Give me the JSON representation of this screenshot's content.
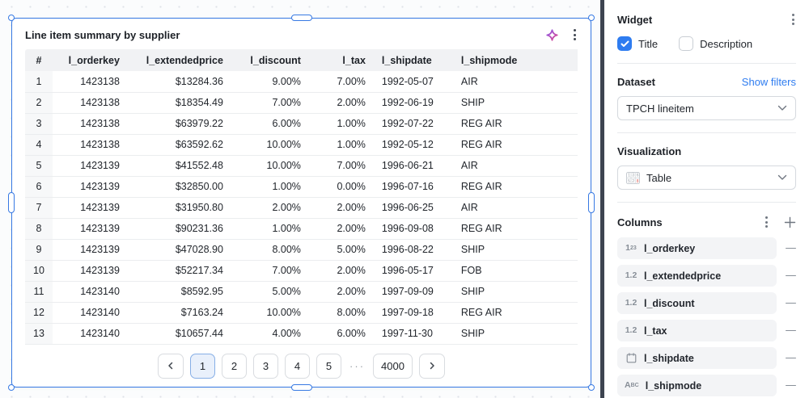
{
  "colors": {
    "selection_blue": "#3779e3",
    "accent_blue": "#2e7cf0",
    "link_blue": "#2e7cf0",
    "sparkle_purple": "#7b5bfa",
    "sparkle_pink": "#f0447c",
    "divider_dark": "#3d4450"
  },
  "widget": {
    "title": "Line item summary by supplier",
    "table": {
      "headers": [
        "#",
        "l_orderkey",
        "l_extendedprice",
        "l_discount",
        "l_tax",
        "l_shipdate",
        "l_shipmode"
      ],
      "rows": [
        [
          "1",
          "1423138",
          "$13284.36",
          "9.00%",
          "7.00%",
          "1992-05-07",
          "AIR"
        ],
        [
          "2",
          "1423138",
          "$18354.49",
          "7.00%",
          "2.00%",
          "1992-06-19",
          "SHIP"
        ],
        [
          "3",
          "1423138",
          "$63979.22",
          "6.00%",
          "1.00%",
          "1992-07-22",
          "REG AIR"
        ],
        [
          "4",
          "1423138",
          "$63592.62",
          "10.00%",
          "1.00%",
          "1992-05-12",
          "REG AIR"
        ],
        [
          "5",
          "1423139",
          "$41552.48",
          "10.00%",
          "7.00%",
          "1996-06-21",
          "AIR"
        ],
        [
          "6",
          "1423139",
          "$32850.00",
          "1.00%",
          "0.00%",
          "1996-07-16",
          "REG AIR"
        ],
        [
          "7",
          "1423139",
          "$31950.80",
          "2.00%",
          "2.00%",
          "1996-06-25",
          "AIR"
        ],
        [
          "8",
          "1423139",
          "$90231.36",
          "1.00%",
          "2.00%",
          "1996-09-08",
          "REG AIR"
        ],
        [
          "9",
          "1423139",
          "$47028.90",
          "8.00%",
          "5.00%",
          "1996-08-22",
          "SHIP"
        ],
        [
          "10",
          "1423139",
          "$52217.34",
          "7.00%",
          "2.00%",
          "1996-05-17",
          "FOB"
        ],
        [
          "11",
          "1423140",
          "$8592.95",
          "5.00%",
          "2.00%",
          "1997-09-09",
          "SHIP"
        ],
        [
          "12",
          "1423140",
          "$7163.24",
          "10.00%",
          "8.00%",
          "1997-09-18",
          "REG AIR"
        ],
        [
          "13",
          "1423140",
          "$10657.44",
          "4.00%",
          "6.00%",
          "1997-11-30",
          "SHIP"
        ]
      ]
    },
    "pagination": {
      "pages": [
        "1",
        "2",
        "3",
        "4",
        "5"
      ],
      "active_page": "1",
      "ellipsis": "···",
      "last_page": "4000"
    }
  },
  "panel": {
    "widget_section": {
      "title": "Widget",
      "checkboxes": [
        {
          "label": "Title",
          "checked": true
        },
        {
          "label": "Description",
          "checked": false
        }
      ]
    },
    "dataset_section": {
      "title": "Dataset",
      "link_label": "Show filters",
      "selected_value": "TPCH lineitem"
    },
    "visualization_section": {
      "title": "Visualization",
      "selected_value": "Table"
    },
    "columns_section": {
      "title": "Columns",
      "items": [
        {
          "type": "integer",
          "label": "l_orderkey"
        },
        {
          "type": "decimal",
          "label": "l_extendedprice"
        },
        {
          "type": "decimal",
          "label": "l_discount"
        },
        {
          "type": "decimal",
          "label": "l_tax"
        },
        {
          "type": "date",
          "label": "l_shipdate"
        },
        {
          "type": "text",
          "label": "l_shipmode"
        }
      ]
    }
  }
}
